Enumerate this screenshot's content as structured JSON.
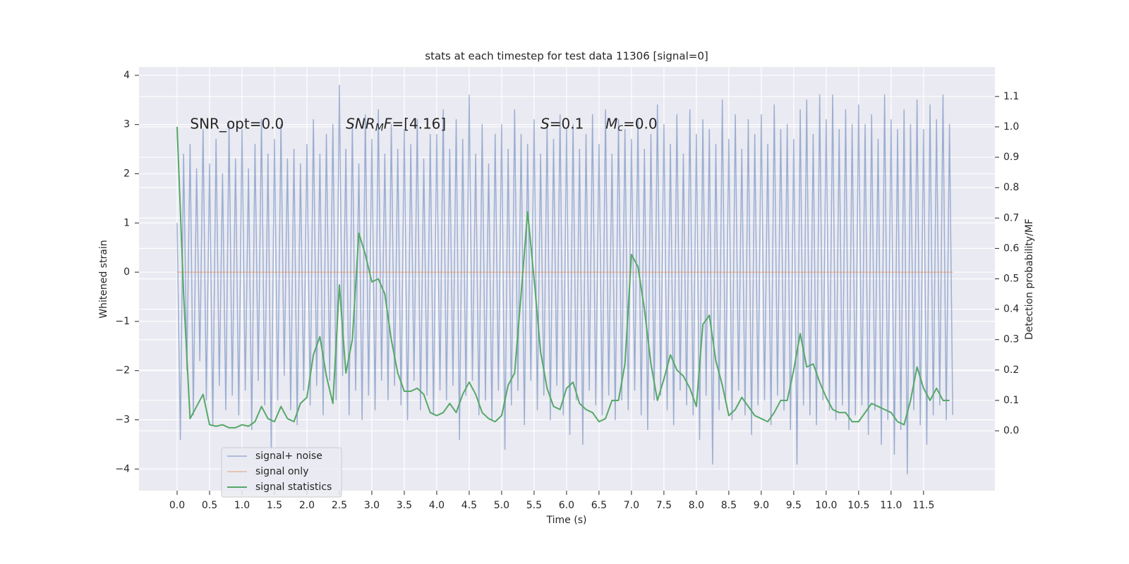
{
  "chart_data": {
    "type": "line",
    "title": "stats at each timestep for test data 11306 [signal=0]",
    "xlabel": "Time (s)",
    "ylabel": "Whitened strain",
    "y2label": "Detection probability/MF",
    "grid": true,
    "legend": "lower left",
    "xlim": [
      -0.587,
      12.6
    ],
    "ylim": [
      -4.44,
      4.17
    ],
    "y2lim": [
      -0.197,
      1.197
    ],
    "xticks": [
      {
        "value": 0,
        "label": "0.0"
      },
      0.5,
      {
        "value": 1,
        "label": "1.0"
      },
      1.5,
      {
        "value": 2,
        "label": "2.0"
      },
      2.5,
      {
        "value": 3,
        "label": "3.0"
      },
      3.5,
      {
        "value": 4,
        "label": "4.0"
      },
      4.5,
      {
        "value": 5,
        "label": "5.0"
      },
      5.5,
      {
        "value": 6,
        "label": "6.0"
      },
      6.5,
      {
        "value": 7,
        "label": "7.0"
      },
      7.5,
      {
        "value": 8,
        "label": "8.0"
      },
      8.5,
      {
        "value": 9,
        "label": "9.0"
      },
      9.5,
      {
        "value": 10,
        "label": "10.0"
      },
      10.5,
      {
        "value": 11,
        "label": "11.0"
      },
      11.5
    ],
    "yticks": [
      {
        "value": -4,
        "label": "−4"
      },
      {
        "value": -3,
        "label": "−3"
      },
      {
        "value": -2,
        "label": "−2"
      },
      {
        "value": -1,
        "label": "−1"
      },
      0,
      1,
      2,
      3,
      4
    ],
    "y2ticks": [
      {
        "value": 0,
        "label": "0.0"
      },
      0.1,
      0.2,
      0.3,
      0.4,
      0.5,
      0.6,
      0.7,
      0.8,
      0.9,
      {
        "value": 1,
        "label": "1.0"
      },
      1.1
    ],
    "annotations": [
      [
        {
          "text": "SNR_opt=0.0"
        }
      ],
      [
        {
          "text": "SNR",
          "style": "italic"
        },
        {
          "text": "M",
          "style": "italic-sub"
        },
        {
          "text": "F",
          "style": "italic"
        },
        {
          "text": "=[4.16]"
        }
      ],
      [
        {
          "text": "S",
          "style": "italic"
        },
        {
          "text": "=0.1"
        }
      ],
      [
        {
          "text": "M",
          "style": "italic"
        },
        {
          "text": "c",
          "style": "italic-sub"
        },
        {
          "text": "=0.0"
        }
      ]
    ],
    "x": [
      0,
      0.05,
      0.1,
      0.15,
      0.2,
      0.25,
      0.3,
      0.35,
      0.4,
      0.45,
      0.5,
      0.55,
      0.6,
      0.65,
      0.7,
      0.75,
      0.8,
      0.85,
      0.9,
      0.95,
      1,
      1.05,
      1.1,
      1.15,
      1.2,
      1.25,
      1.3,
      1.35,
      1.4,
      1.45,
      1.5,
      1.55,
      1.6,
      1.65,
      1.7,
      1.75,
      1.8,
      1.85,
      1.9,
      1.95,
      2,
      2.05,
      2.1,
      2.15,
      2.2,
      2.25,
      2.3,
      2.35,
      2.4,
      2.45,
      2.5,
      2.55,
      2.6,
      2.65,
      2.7,
      2.75,
      2.8,
      2.85,
      2.9,
      2.95,
      3,
      3.05,
      3.1,
      3.15,
      3.2,
      3.25,
      3.3,
      3.35,
      3.4,
      3.45,
      3.5,
      3.55,
      3.6,
      3.65,
      3.7,
      3.75,
      3.8,
      3.85,
      3.9,
      3.95,
      4,
      4.05,
      4.1,
      4.15,
      4.2,
      4.25,
      4.3,
      4.35,
      4.4,
      4.45,
      4.5,
      4.55,
      4.6,
      4.65,
      4.7,
      4.75,
      4.8,
      4.85,
      4.9,
      4.95,
      5,
      5.05,
      5.1,
      5.15,
      5.2,
      5.25,
      5.3,
      5.35,
      5.4,
      5.45,
      5.5,
      5.55,
      5.6,
      5.65,
      5.7,
      5.75,
      5.8,
      5.85,
      5.9,
      5.95,
      6,
      6.05,
      6.1,
      6.15,
      6.2,
      6.25,
      6.3,
      6.35,
      6.4,
      6.45,
      6.5,
      6.55,
      6.6,
      6.65,
      6.7,
      6.75,
      6.8,
      6.85,
      6.9,
      6.95,
      7,
      7.05,
      7.1,
      7.15,
      7.2,
      7.25,
      7.3,
      7.35,
      7.4,
      7.45,
      7.5,
      7.55,
      7.6,
      7.65,
      7.7,
      7.75,
      7.8,
      7.85,
      7.9,
      7.95,
      8,
      8.05,
      8.1,
      8.15,
      8.2,
      8.25,
      8.3,
      8.35,
      8.4,
      8.45,
      8.5,
      8.55,
      8.6,
      8.65,
      8.7,
      8.75,
      8.8,
      8.85,
      8.9,
      8.95,
      9,
      9.05,
      9.1,
      9.15,
      9.2,
      9.25,
      9.3,
      9.35,
      9.4,
      9.45,
      9.5,
      9.55,
      9.6,
      9.65,
      9.7,
      9.75,
      9.8,
      9.85,
      9.9,
      9.95,
      10,
      10.05,
      10.1,
      10.15,
      10.2,
      10.25,
      10.3,
      10.35,
      10.4,
      10.45,
      10.5,
      10.55,
      10.6,
      10.65,
      10.7,
      10.75,
      10.8,
      10.85,
      10.9,
      10.95,
      11,
      11.05,
      11.1,
      11.15,
      11.2,
      11.25,
      11.3,
      11.35,
      11.4,
      11.45,
      11.5,
      11.55,
      11.6,
      11.65,
      11.7,
      11.75,
      11.8,
      11.85,
      11.9,
      11.95
    ],
    "series": [
      {
        "name": "signal+ noise",
        "color": "#4c72b0",
        "values": [
          1.0,
          -3.4,
          2.4,
          -2.0,
          2.6,
          -2.9,
          2.1,
          -1.8,
          2.9,
          -2.6,
          2.2,
          -3.1,
          2.7,
          -2.3,
          2.0,
          -2.8,
          3.0,
          -2.5,
          2.3,
          -2.9,
          2.9,
          -2.4,
          2.1,
          -3.2,
          2.6,
          -2.2,
          3.1,
          -2.7,
          2.4,
          -3.6,
          2.7,
          -2.6,
          3.0,
          -2.1,
          2.3,
          -2.8,
          2.5,
          -3.1,
          2.2,
          -2.4,
          2.6,
          -2.7,
          3.1,
          -2.3,
          2.4,
          -2.9,
          2.8,
          -2.2,
          3.0,
          -2.6,
          3.8,
          -2.1,
          2.5,
          -2.9,
          3.0,
          -2.4,
          2.2,
          -3.0,
          3.2,
          -2.5,
          2.7,
          -2.8,
          3.3,
          -2.2,
          2.4,
          -2.6,
          3.0,
          -2.3,
          2.5,
          -2.7,
          2.9,
          -3.0,
          2.6,
          -2.2,
          3.1,
          -2.8,
          2.3,
          -2.5,
          2.8,
          -2.9,
          2.8,
          -2.4,
          3.3,
          -2.6,
          2.5,
          -2.3,
          3.1,
          -3.4,
          2.7,
          -2.5,
          3.6,
          -2.2,
          2.4,
          -2.9,
          3.0,
          -2.6,
          2.2,
          -3.0,
          2.8,
          -2.4,
          3.0,
          -3.6,
          2.5,
          -2.7,
          3.3,
          -2.4,
          2.8,
          -3.1,
          2.6,
          -2.2,
          3.1,
          -2.8,
          2.4,
          -2.5,
          3.0,
          -3.0,
          2.7,
          -2.3,
          3.2,
          -2.9,
          2.9,
          -3.3,
          3.0,
          -2.6,
          2.5,
          -3.5,
          2.8,
          -2.4,
          3.2,
          -2.7,
          2.6,
          -2.9,
          3.3,
          -2.5,
          2.4,
          -3.0,
          3.1,
          -2.6,
          2.9,
          -2.8,
          2.7,
          -2.4,
          3.1,
          -2.9,
          2.5,
          -3.2,
          2.8,
          -2.6,
          3.4,
          -2.5,
          3.0,
          -2.8,
          2.6,
          -3.1,
          3.2,
          -2.4,
          2.4,
          -2.7,
          3.3,
          -2.9,
          2.8,
          -3.4,
          3.1,
          -2.5,
          2.9,
          -3.9,
          2.6,
          -2.8,
          3.5,
          -2.6,
          2.7,
          -3.0,
          3.2,
          -2.4,
          2.5,
          -2.9,
          3.1,
          -3.3,
          2.8,
          -2.7,
          3.2,
          -2.6,
          2.6,
          -3.1,
          3.4,
          -2.5,
          2.9,
          -2.8,
          3.0,
          -3.2,
          2.7,
          -3.9,
          3.3,
          -2.7,
          3.5,
          -2.9,
          2.8,
          -3.1,
          3.6,
          -2.6,
          3.1,
          -2.8,
          3.6,
          -3.0,
          2.9,
          -2.7,
          3.3,
          -3.2,
          3.0,
          -2.9,
          3.4,
          -2.7,
          3.0,
          -3.3,
          3.2,
          -2.8,
          2.7,
          -3.5,
          3.6,
          -3.0,
          3.1,
          -3.7,
          2.9,
          -3.2,
          3.3,
          -4.1,
          3.0,
          -2.8,
          3.5,
          -3.1,
          2.9,
          -3.5,
          3.4,
          -2.9,
          3.1,
          -2.7,
          3.6,
          -3.0,
          3.0,
          -2.9
        ]
      },
      {
        "name": "signal only",
        "color": "#dd8452",
        "x": [
          0,
          11.95
        ],
        "values": [
          0,
          0
        ]
      },
      {
        "name": "signal statistics",
        "color": "#55a868",
        "axis": "y2",
        "x": [
          0,
          0.1,
          0.2,
          0.3,
          0.4,
          0.5,
          0.6,
          0.7,
          0.8,
          0.9,
          1,
          1.1,
          1.2,
          1.3,
          1.4,
          1.5,
          1.6,
          1.7,
          1.8,
          1.9,
          2,
          2.1,
          2.2,
          2.3,
          2.4,
          2.5,
          2.6,
          2.7,
          2.8,
          2.9,
          3,
          3.1,
          3.2,
          3.3,
          3.4,
          3.5,
          3.6,
          3.7,
          3.8,
          3.9,
          4,
          4.1,
          4.2,
          4.3,
          4.4,
          4.5,
          4.6,
          4.7,
          4.8,
          4.9,
          5,
          5.1,
          5.2,
          5.3,
          5.4,
          5.5,
          5.6,
          5.7,
          5.8,
          5.9,
          6,
          6.1,
          6.2,
          6.3,
          6.4,
          6.5,
          6.6,
          6.7,
          6.8,
          6.9,
          7,
          7.1,
          7.2,
          7.3,
          7.4,
          7.5,
          7.6,
          7.7,
          7.8,
          7.9,
          8,
          8.1,
          8.2,
          8.3,
          8.4,
          8.5,
          8.6,
          8.7,
          8.8,
          8.9,
          9,
          9.1,
          9.2,
          9.3,
          9.4,
          9.5,
          9.6,
          9.7,
          9.8,
          9.9,
          10,
          10.1,
          10.2,
          10.3,
          10.4,
          10.5,
          10.6,
          10.7,
          10.8,
          10.9,
          11,
          11.1,
          11.2,
          11.3,
          11.4,
          11.5,
          11.6,
          11.7,
          11.8,
          11.9
        ],
        "values": [
          1.0,
          0.45,
          0.04,
          0.08,
          0.12,
          0.02,
          0.015,
          0.02,
          0.01,
          0.01,
          0.02,
          0.015,
          0.03,
          0.08,
          0.04,
          0.03,
          0.08,
          0.04,
          0.03,
          0.09,
          0.11,
          0.25,
          0.31,
          0.18,
          0.09,
          0.48,
          0.19,
          0.3,
          0.65,
          0.58,
          0.49,
          0.5,
          0.45,
          0.3,
          0.19,
          0.13,
          0.13,
          0.14,
          0.12,
          0.06,
          0.05,
          0.06,
          0.09,
          0.06,
          0.12,
          0.16,
          0.12,
          0.06,
          0.04,
          0.03,
          0.05,
          0.15,
          0.19,
          0.45,
          0.72,
          0.5,
          0.26,
          0.14,
          0.08,
          0.07,
          0.14,
          0.16,
          0.09,
          0.07,
          0.06,
          0.03,
          0.04,
          0.1,
          0.1,
          0.22,
          0.58,
          0.54,
          0.4,
          0.22,
          0.1,
          0.17,
          0.25,
          0.2,
          0.18,
          0.14,
          0.08,
          0.35,
          0.38,
          0.23,
          0.15,
          0.05,
          0.07,
          0.11,
          0.08,
          0.05,
          0.04,
          0.03,
          0.06,
          0.1,
          0.1,
          0.2,
          0.32,
          0.21,
          0.22,
          0.16,
          0.11,
          0.07,
          0.06,
          0.06,
          0.03,
          0.03,
          0.06,
          0.09,
          0.08,
          0.07,
          0.06,
          0.03,
          0.02,
          0.1,
          0.21,
          0.14,
          0.1,
          0.14,
          0.1,
          0.1
        ]
      }
    ]
  }
}
